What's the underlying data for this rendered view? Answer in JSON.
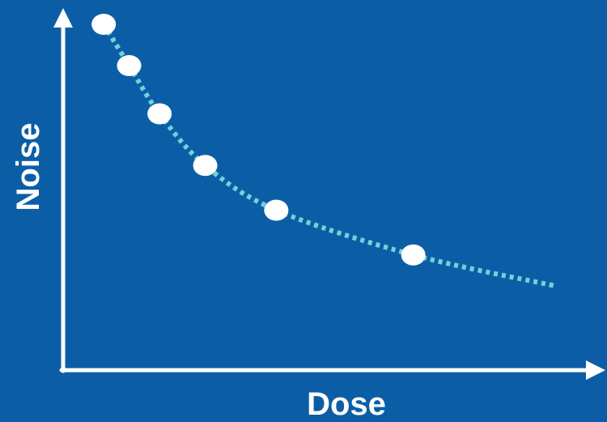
{
  "chart_data": {
    "type": "scatter",
    "xlabel": "Dose",
    "ylabel": "Noise",
    "grid": false,
    "xlim": [
      0,
      100
    ],
    "ylim": [
      0,
      100
    ],
    "series": [
      {
        "kind": "points",
        "x": [
          8,
          13,
          19,
          28,
          42,
          69
        ],
        "y": [
          100,
          88,
          74,
          59,
          46,
          33
        ]
      },
      {
        "kind": "trend",
        "style": "dotted",
        "x": [
          8,
          13,
          19,
          28,
          42,
          69,
          97
        ],
        "y": [
          100,
          88,
          74,
          59,
          46,
          33,
          24
        ]
      }
    ],
    "colors": {
      "background": "#0b5ea6",
      "axis": "#ffffff",
      "point": "#ffffff",
      "trend": "#6fd3d8"
    }
  }
}
